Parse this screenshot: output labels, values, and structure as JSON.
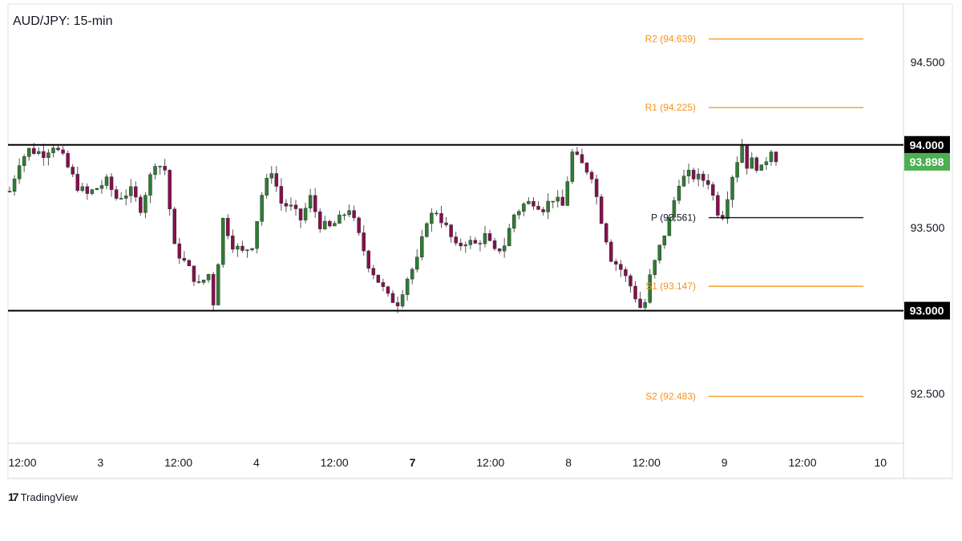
{
  "chart_data": {
    "type": "candlestick",
    "title": "AUD/JPY: 15-min",
    "ylim": [
      92.2,
      94.85
    ],
    "y_ticks": [
      "94.500",
      "93.500",
      "92.500"
    ],
    "x_ticks": [
      "12:00",
      "3",
      "12:00",
      "4",
      "12:00",
      "7",
      "12:00",
      "8",
      "12:00",
      "9",
      "12:00",
      "10"
    ],
    "bold_x_ticks": [
      "7"
    ],
    "horizontal_lines": [
      {
        "label": "94.000",
        "value": 94.0,
        "color": "#000000"
      },
      {
        "label": "93.000",
        "value": 93.0,
        "color": "#000000"
      }
    ],
    "pivot_levels": [
      {
        "label": "R2 (94.639)",
        "value": 94.639,
        "color": "#f7931a"
      },
      {
        "label": "R1 (94.225)",
        "value": 94.225,
        "color": "#f7931a"
      },
      {
        "label": "P (93.561)",
        "value": 93.561,
        "color": "#131722"
      },
      {
        "label": "S1 (93.147)",
        "value": 93.147,
        "color": "#f7931a"
      },
      {
        "label": "S2 (92.483)",
        "value": 92.483,
        "color": "#f7931a"
      }
    ],
    "last_price": {
      "label": "93.898",
      "value": 93.898,
      "color": "#4caf50"
    },
    "up_color": "#2e7d32",
    "down_color": "#880e4f",
    "close_path": [
      [
        0,
        93.72
      ],
      [
        2,
        93.9
      ],
      [
        4,
        93.97
      ],
      [
        7,
        93.95
      ],
      [
        9,
        94.0
      ],
      [
        11,
        93.92
      ],
      [
        14,
        93.75
      ],
      [
        16,
        93.7
      ],
      [
        18,
        93.74
      ],
      [
        20,
        93.78
      ],
      [
        22,
        93.68
      ],
      [
        25,
        93.72
      ],
      [
        27,
        93.62
      ],
      [
        30,
        93.9
      ],
      [
        32,
        93.85
      ],
      [
        34,
        93.38
      ],
      [
        37,
        93.25
      ],
      [
        39,
        93.15
      ],
      [
        41,
        93.22
      ],
      [
        42,
        93.05
      ],
      [
        44,
        93.55
      ],
      [
        46,
        93.4
      ],
      [
        48,
        93.35
      ],
      [
        50,
        93.4
      ],
      [
        52,
        93.7
      ],
      [
        54,
        93.85
      ],
      [
        56,
        93.65
      ],
      [
        58,
        93.62
      ],
      [
        60,
        93.55
      ],
      [
        62,
        93.68
      ],
      [
        64,
        93.52
      ],
      [
        66,
        93.5
      ],
      [
        68,
        93.55
      ],
      [
        70,
        93.62
      ],
      [
        72,
        93.45
      ],
      [
        74,
        93.28
      ],
      [
        76,
        93.18
      ],
      [
        78,
        93.08
      ],
      [
        80,
        93.05
      ],
      [
        82,
        93.2
      ],
      [
        84,
        93.3
      ],
      [
        85,
        93.42
      ],
      [
        86,
        93.55
      ],
      [
        88,
        93.6
      ],
      [
        90,
        93.5
      ],
      [
        92,
        93.38
      ],
      [
        94,
        93.42
      ],
      [
        96,
        93.4
      ],
      [
        98,
        93.45
      ],
      [
        100,
        93.35
      ],
      [
        102,
        93.4
      ],
      [
        104,
        93.58
      ],
      [
        106,
        93.64
      ],
      [
        108,
        93.66
      ],
      [
        110,
        93.62
      ],
      [
        112,
        93.68
      ],
      [
        114,
        93.63
      ],
      [
        116,
        93.95
      ],
      [
        118,
        93.88
      ],
      [
        120,
        93.82
      ],
      [
        122,
        93.55
      ],
      [
        124,
        93.32
      ],
      [
        126,
        93.25
      ],
      [
        128,
        93.15
      ],
      [
        130,
        93.02
      ],
      [
        131,
        93.05
      ],
      [
        132,
        93.2
      ],
      [
        134,
        93.38
      ],
      [
        136,
        93.55
      ],
      [
        138,
        93.78
      ],
      [
        140,
        93.82
      ],
      [
        142,
        93.8
      ],
      [
        144,
        93.78
      ],
      [
        146,
        93.6
      ],
      [
        147,
        93.58
      ],
      [
        149,
        93.82
      ],
      [
        151,
        94.0
      ],
      [
        152,
        93.88
      ],
      [
        153,
        93.9
      ],
      [
        155,
        93.85
      ],
      [
        157,
        93.98
      ],
      [
        158,
        93.898
      ]
    ]
  }
}
